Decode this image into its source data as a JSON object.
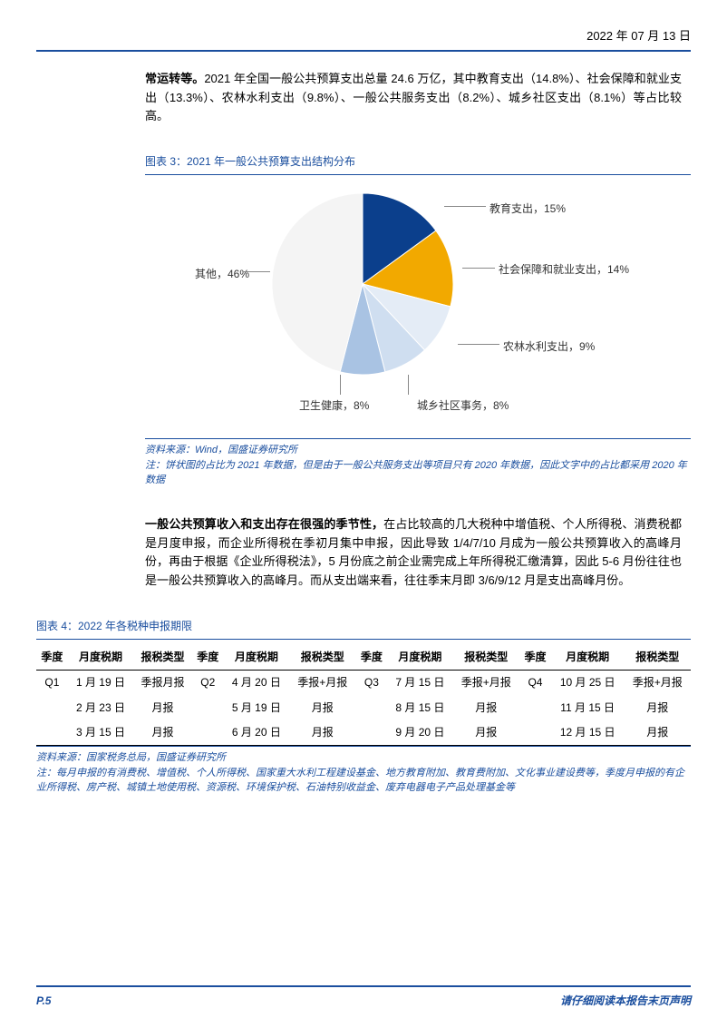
{
  "header": {
    "date": "2022 年 07 月 13 日"
  },
  "para1": {
    "bold": "常运转等。",
    "rest": "2021 年全国一般公共预算支出总量 24.6 万亿，其中教育支出（14.8%）、社会保障和就业支出（13.3%）、农林水利支出（9.8%）、一般公共服务支出（8.2%）、城乡社区支出（8.1%）等占比较高。"
  },
  "chart3": {
    "caption": "图表 3：2021 年一般公共预算支出结构分布",
    "type": "pie",
    "slices": [
      {
        "label": "教育支出，15%",
        "value": 15,
        "color": "#0b3f8c"
      },
      {
        "label": "社会保障和就业支出，14%",
        "value": 14,
        "color": "#f2a900"
      },
      {
        "label": "农林水利支出，9%",
        "value": 9,
        "color": "#e4ecf6"
      },
      {
        "label": "城乡社区事务，8%",
        "value": 8,
        "color": "#cfdef0"
      },
      {
        "label": "卫生健康，8%",
        "value": 8,
        "color": "#a9c3e3"
      },
      {
        "label": "其他，46%",
        "value": 46,
        "color": "#f4f4f4"
      }
    ],
    "radius": 100,
    "source": "资料来源：Wind，国盛证券研究所",
    "note": "注：饼状图的占比为 2021 年数据，但是由于一般公共服务支出等项目只有 2020 年数据，因此文字中的占比都采用 2020 年数据"
  },
  "para2": {
    "bold": "一般公共预算收入和支出存在很强的季节性，",
    "rest": "在占比较高的几大税种中增值税、个人所得税、消费税都是月度申报，而企业所得税在季初月集中申报，因此导致 1/4/7/10 月成为一般公共预算收入的高峰月份，再由于根据《企业所得税法》，5 月份底之前企业需完成上年所得税汇缴清算，因此 5-6 月份往往也是一般公共预算收入的高峰月。而从支出端来看，往往季末月即 3/6/9/12 月是支出高峰月份。"
  },
  "table4": {
    "caption": "图表 4：2022 年各税种申报期限",
    "headers": [
      "季度",
      "月度税期",
      "报税类型",
      "季度",
      "月度税期",
      "报税类型",
      "季度",
      "月度税期",
      "报税类型",
      "季度",
      "月度税期",
      "报税类型"
    ],
    "rows": [
      [
        "Q1",
        "1 月 19 日",
        "季报月报",
        "Q2",
        "4 月 20 日",
        "季报+月报",
        "Q3",
        "7 月 15 日",
        "季报+月报",
        "Q4",
        "10 月 25 日",
        "季报+月报"
      ],
      [
        "",
        "2 月 23 日",
        "月报",
        "",
        "5 月 19 日",
        "月报",
        "",
        "8 月 15 日",
        "月报",
        "",
        "11 月 15 日",
        "月报"
      ],
      [
        "",
        "3 月 15 日",
        "月报",
        "",
        "6 月 20 日",
        "月报",
        "",
        "9 月 20 日",
        "月报",
        "",
        "12 月 15 日",
        "月报"
      ]
    ],
    "source": "资料来源：国家税务总局，国盛证券研究所",
    "note": "注：每月申报的有消费税、增值税、个人所得税、国家重大水利工程建设基金、地方教育附加、教育费附加、文化事业建设费等，季度月申报的有企业所得税、房产税、城镇土地使用税、资源税、环境保护税、石油特别收益金、废弃电器电子产品处理基金等"
  },
  "footer": {
    "page": "P.5",
    "text": "请仔细阅读本报告末页声明"
  }
}
